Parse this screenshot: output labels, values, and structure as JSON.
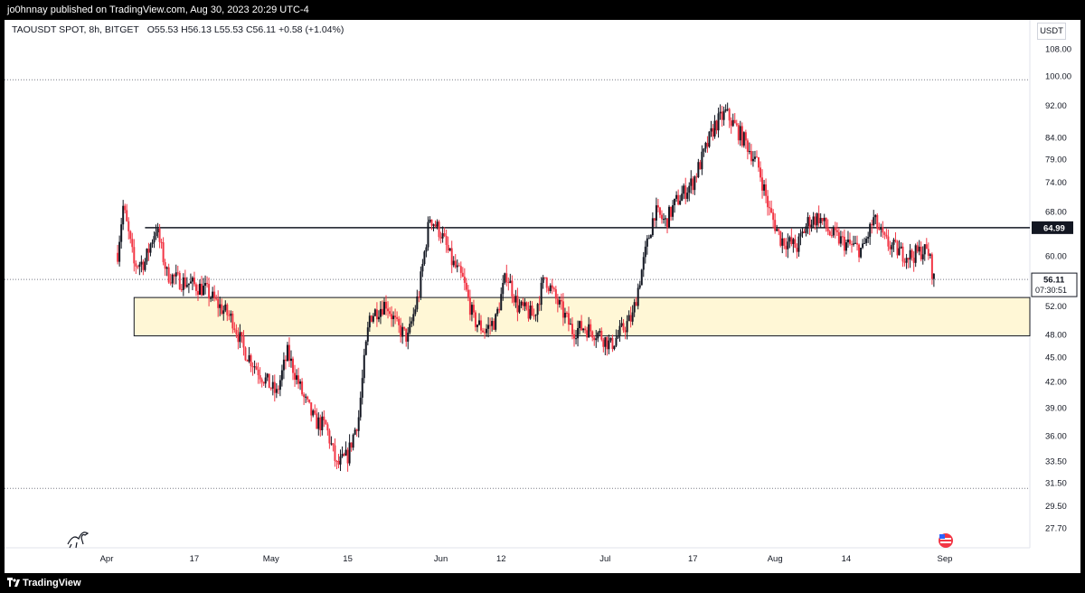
{
  "header": {
    "publisher_line": "jo0hnnay published on TradingView.com, Aug 30, 2023 20:29 UTC-4"
  },
  "legend": {
    "symbol": "TAOUSDT SPOT, 8h, BITGET",
    "open": "O55.53",
    "high": "H56.13",
    "low": "L55.53",
    "close": "C56.11",
    "change": "+0.58 (+1.04%)"
  },
  "price_axis": {
    "currency": "USDT",
    "current_price": "56.11",
    "countdown": "07:30:51",
    "level_label": "64.99"
  },
  "footer": {
    "brand": "TradingView"
  },
  "colors": {
    "up": "#131722",
    "down": "#f23645",
    "zone_fill": "#fff7d6",
    "zone_border": "#131722"
  },
  "chart_data": {
    "type": "candlestick",
    "symbol": "TAOUSDT",
    "timeframe": "8h",
    "exchange": "BITGET",
    "y_ticks": [
      108.0,
      100.0,
      92.0,
      84.0,
      79.0,
      74.0,
      68.0,
      60.0,
      56.11,
      52.0,
      48.0,
      45.0,
      42.0,
      39.0,
      36.0,
      33.5,
      31.5,
      29.5,
      27.7
    ],
    "y_tick_labels": [
      "108.00",
      "100.00",
      "92.00",
      "84.00",
      "79.00",
      "74.00",
      "68.00",
      "60.00",
      "52.00",
      "48.00",
      "45.00",
      "42.00",
      "39.00",
      "36.00",
      "33.50",
      "31.50",
      "29.50",
      "27.70"
    ],
    "x_ticks": [
      {
        "label": "Apr",
        "date": "2023-04-01"
      },
      {
        "label": "17",
        "date": "2023-04-17"
      },
      {
        "label": "May",
        "date": "2023-05-01"
      },
      {
        "label": "15",
        "date": "2023-05-15"
      },
      {
        "label": "Jun",
        "date": "2023-06-01"
      },
      {
        "label": "12",
        "date": "2023-06-12"
      },
      {
        "label": "Jul",
        "date": "2023-07-01"
      },
      {
        "label": "17",
        "date": "2023-07-17"
      },
      {
        "label": "Aug",
        "date": "2023-08-01"
      },
      {
        "label": "14",
        "date": "2023-08-14"
      },
      {
        "label": "Sep",
        "date": "2023-09-01"
      }
    ],
    "scale": "log",
    "horizontal_level": 64.99,
    "support_zone": {
      "low": 47.8,
      "high": 53.3,
      "start_date": "2023-04-06"
    },
    "dotted_levels": [
      98.9,
      31.0,
      56.11
    ],
    "points": [
      [
        "2023-04-03",
        60.5
      ],
      [
        "2023-04-04",
        69.0
      ],
      [
        "2023-04-06",
        58.5
      ],
      [
        "2023-04-08",
        59.0
      ],
      [
        "2023-04-10",
        65.0
      ],
      [
        "2023-04-12",
        57.0
      ],
      [
        "2023-04-14",
        56.0
      ],
      [
        "2023-04-16",
        55.5
      ],
      [
        "2023-04-19",
        54.5
      ],
      [
        "2023-04-21",
        52.5
      ],
      [
        "2023-04-24",
        50.0
      ],
      [
        "2023-04-26",
        46.0
      ],
      [
        "2023-04-29",
        43.0
      ],
      [
        "2023-05-02",
        40.5
      ],
      [
        "2023-05-04",
        45.5
      ],
      [
        "2023-05-07",
        40.0
      ],
      [
        "2023-05-09",
        37.5
      ],
      [
        "2023-05-11",
        37.0
      ],
      [
        "2023-05-13",
        33.0
      ],
      [
        "2023-05-15",
        34.0
      ],
      [
        "2023-05-17",
        38.0
      ],
      [
        "2023-05-19",
        50.5
      ],
      [
        "2023-05-22",
        52.5
      ],
      [
        "2023-05-24",
        49.0
      ],
      [
        "2023-05-26",
        47.5
      ],
      [
        "2023-05-28",
        54.0
      ],
      [
        "2023-05-30",
        67.0
      ],
      [
        "2023-06-01",
        64.0
      ],
      [
        "2023-06-03",
        59.0
      ],
      [
        "2023-06-05",
        56.0
      ],
      [
        "2023-06-07",
        50.0
      ],
      [
        "2023-06-09",
        48.5
      ],
      [
        "2023-06-11",
        50.0
      ],
      [
        "2023-06-13",
        57.0
      ],
      [
        "2023-06-15",
        52.0
      ],
      [
        "2023-06-18",
        50.5
      ],
      [
        "2023-06-20",
        56.5
      ],
      [
        "2023-06-22",
        53.0
      ],
      [
        "2023-06-25",
        48.5
      ],
      [
        "2023-06-27",
        49.0
      ],
      [
        "2023-06-30",
        48.0
      ],
      [
        "2023-07-02",
        46.5
      ],
      [
        "2023-07-04",
        48.5
      ],
      [
        "2023-07-06",
        50.5
      ],
      [
        "2023-07-08",
        59.0
      ],
      [
        "2023-07-10",
        68.0
      ],
      [
        "2023-07-12",
        66.0
      ],
      [
        "2023-07-14",
        70.0
      ],
      [
        "2023-07-17",
        74.0
      ],
      [
        "2023-07-19",
        80.0
      ],
      [
        "2023-07-21",
        87.0
      ],
      [
        "2023-07-23",
        90.0
      ],
      [
        "2023-07-25",
        86.0
      ],
      [
        "2023-07-27",
        82.0
      ],
      [
        "2023-07-29",
        77.0
      ],
      [
        "2023-07-31",
        68.0
      ],
      [
        "2023-08-02",
        63.0
      ],
      [
        "2023-08-05",
        61.5
      ],
      [
        "2023-08-07",
        66.0
      ],
      [
        "2023-08-09",
        67.0
      ],
      [
        "2023-08-11",
        64.0
      ],
      [
        "2023-08-14",
        62.0
      ],
      [
        "2023-08-17",
        61.0
      ],
      [
        "2023-08-19",
        66.5
      ],
      [
        "2023-08-21",
        62.5
      ],
      [
        "2023-08-24",
        60.5
      ],
      [
        "2023-08-26",
        60.0
      ],
      [
        "2023-08-28",
        61.0
      ],
      [
        "2023-08-29",
        60.5
      ],
      [
        "2023-08-30",
        56.11
      ]
    ]
  }
}
